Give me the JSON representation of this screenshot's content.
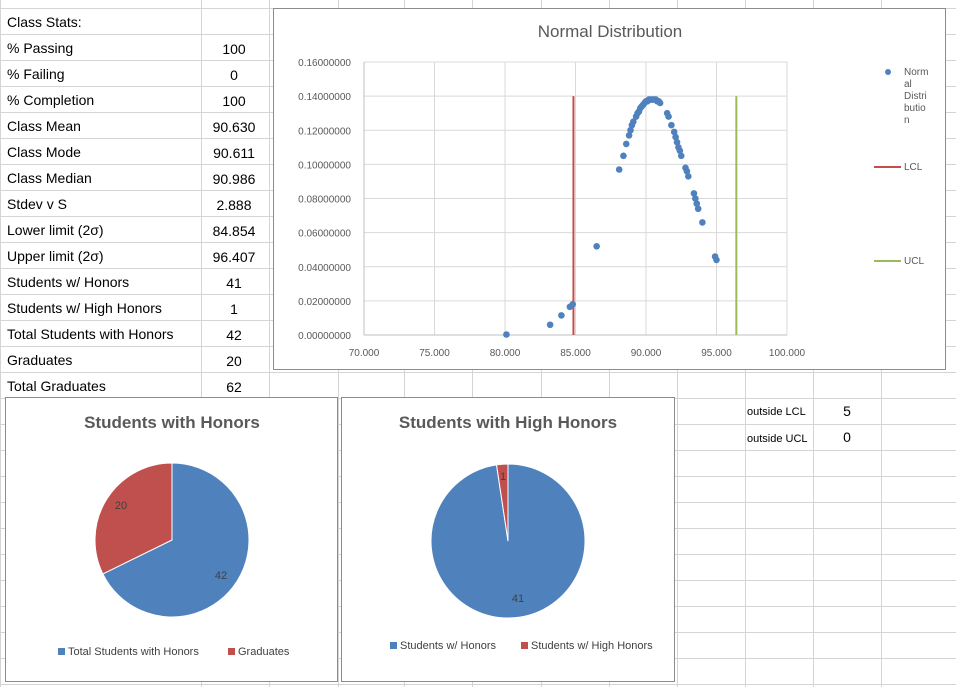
{
  "stats": [
    {
      "label": "Class Stats:",
      "value": ""
    },
    {
      "label": "% Passing",
      "value": "100"
    },
    {
      "label": "% Failing",
      "value": "0"
    },
    {
      "label": "% Completion",
      "value": "100"
    },
    {
      "label": "Class Mean",
      "value": "90.630"
    },
    {
      "label": "Class Mode",
      "value": "90.611"
    },
    {
      "label": "Class Median",
      "value": "90.986"
    },
    {
      "label": "Stdev v S",
      "value": "2.888"
    },
    {
      "label": "Lower limit (2σ)",
      "value": "84.854"
    },
    {
      "label": "Upper limit (2σ)",
      "value": "96.407"
    },
    {
      "label": "Students w/ Honors",
      "value": "41"
    },
    {
      "label": "Students w/ High Honors",
      "value": "1"
    },
    {
      "label": "Total Students with Honors",
      "value": "42"
    },
    {
      "label": "Graduates",
      "value": "20"
    },
    {
      "label": "Total Graduates",
      "value": "62"
    }
  ],
  "outside": [
    {
      "label": "outside LCL",
      "value": "5"
    },
    {
      "label": "outside UCL",
      "value": "0"
    }
  ],
  "colors": {
    "blue": "#4f81bd",
    "red": "#c0504d",
    "green": "#9bbb59"
  },
  "chart_data": [
    {
      "type": "scatter",
      "title": "Normal Distribution",
      "xlim": [
        70,
        100
      ],
      "ylim": [
        0,
        0.16
      ],
      "xticks": [
        "70.000",
        "75.000",
        "80.000",
        "85.000",
        "90.000",
        "95.000",
        "100.000"
      ],
      "yticks": [
        "0.00000000",
        "0.02000000",
        "0.04000000",
        "0.06000000",
        "0.08000000",
        "0.10000000",
        "0.12000000",
        "0.14000000",
        "0.16000000"
      ],
      "legend_position": "right",
      "series": [
        {
          "name": "Normal Distribution",
          "legend_label": "Norm\nal\nDistri\nbutio\nn",
          "kind": "points",
          "color": "#4f81bd",
          "x": [
            80.1,
            83.2,
            84.0,
            84.6,
            84.8,
            86.5,
            88.1,
            88.4,
            88.6,
            88.8,
            88.9,
            89.0,
            89.1,
            89.3,
            89.4,
            89.5,
            89.6,
            89.7,
            89.8,
            89.9,
            90.0,
            90.1,
            90.2,
            90.3,
            90.4,
            90.5,
            90.6,
            90.7,
            90.8,
            90.9,
            91.0,
            91.5,
            91.6,
            91.8,
            92.0,
            92.1,
            92.2,
            92.3,
            92.4,
            92.5,
            92.8,
            92.9,
            93.0,
            93.4,
            93.5,
            93.6,
            93.7,
            94.0,
            94.9,
            95.0
          ],
          "y": [
            0.0003,
            0.006,
            0.0115,
            0.0165,
            0.018,
            0.052,
            0.097,
            0.105,
            0.112,
            0.117,
            0.12,
            0.123,
            0.125,
            0.128,
            0.13,
            0.131,
            0.133,
            0.134,
            0.135,
            0.136,
            0.137,
            0.137,
            0.138,
            0.138,
            0.138,
            0.138,
            0.138,
            0.138,
            0.137,
            0.137,
            0.136,
            0.13,
            0.128,
            0.123,
            0.119,
            0.116,
            0.113,
            0.11,
            0.108,
            0.105,
            0.098,
            0.096,
            0.093,
            0.083,
            0.08,
            0.077,
            0.074,
            0.066,
            0.046,
            0.044
          ]
        },
        {
          "name": "LCL",
          "kind": "line",
          "color": "#c0504d",
          "x": [
            84.854,
            84.854
          ],
          "y": [
            0,
            0.14
          ]
        },
        {
          "name": "UCL",
          "kind": "line",
          "color": "#9bbb59",
          "x": [
            96.407,
            96.407
          ],
          "y": [
            0,
            0.14
          ]
        }
      ]
    },
    {
      "type": "pie",
      "title": "Students with Honors",
      "categories": [
        "Total Students with Honors",
        "Graduates"
      ],
      "values": [
        42,
        20
      ],
      "colors": [
        "#4f81bd",
        "#c0504d"
      ],
      "legend_position": "bottom"
    },
    {
      "type": "pie",
      "title": "Students with High Honors",
      "categories": [
        "Students w/ Honors",
        "Students w/ High Honors"
      ],
      "values": [
        41,
        1
      ],
      "colors": [
        "#4f81bd",
        "#c0504d"
      ],
      "legend_position": "bottom"
    }
  ]
}
